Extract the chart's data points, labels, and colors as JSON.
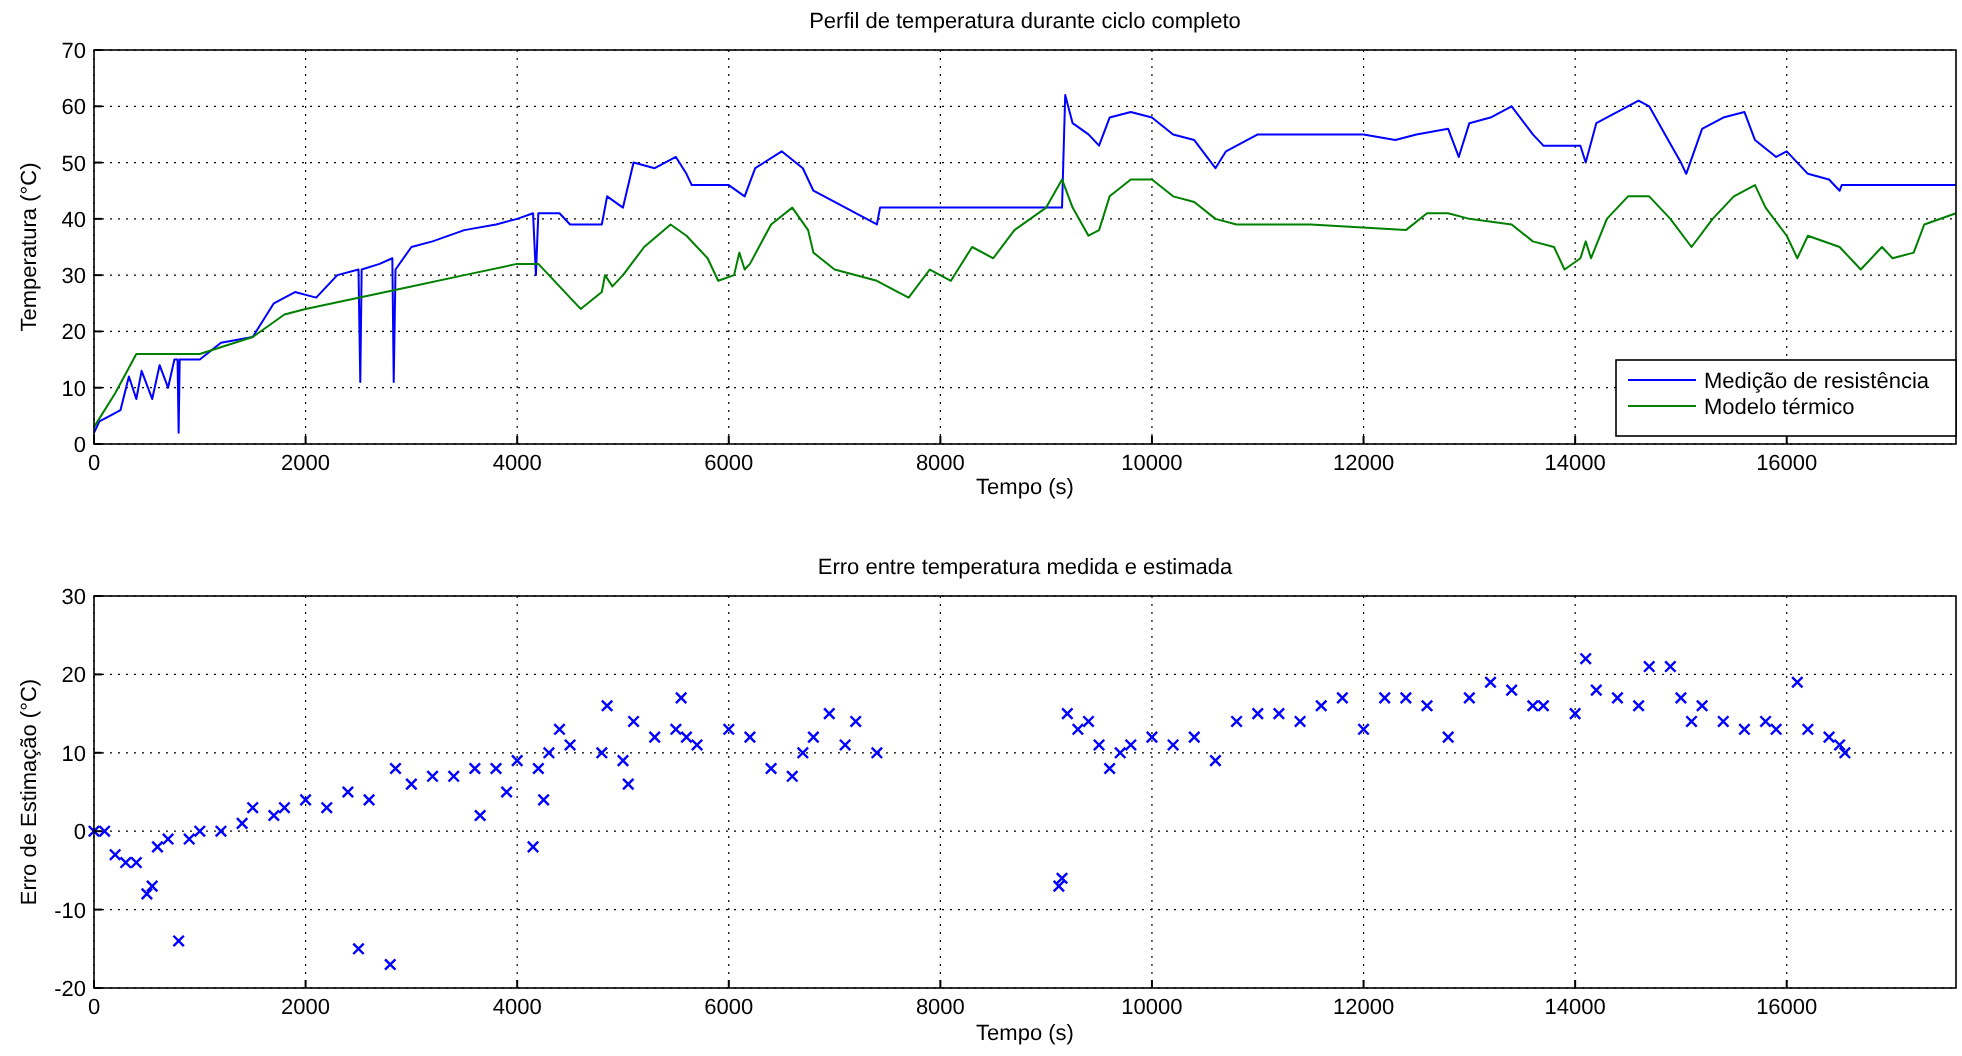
{
  "chart_data": [
    {
      "type": "line",
      "title": "Perfil de temperatura durante ciclo completo",
      "xlabel": "Tempo (s)",
      "ylabel": "Temperatura (°C)",
      "xlim": [
        0,
        17600
      ],
      "xticks": [
        0,
        2000,
        4000,
        6000,
        8000,
        10000,
        12000,
        14000,
        16000
      ],
      "ylim": [
        0,
        70
      ],
      "yticks": [
        0,
        10,
        20,
        30,
        40,
        50,
        60,
        70
      ],
      "grid": true,
      "legend": "bottom right",
      "line_style": "solid",
      "series": [
        {
          "name": "Medição de resistência",
          "color": "#0000ff",
          "x": [
            0,
            50,
            150,
            250,
            330,
            400,
            450,
            550,
            620,
            700,
            760,
            790,
            800,
            810,
            1000,
            1200,
            1500,
            1700,
            1900,
            2100,
            2300,
            2500,
            2517,
            2530,
            2700,
            2820,
            2833,
            2850,
            3000,
            3200,
            3500,
            3800,
            4000,
            4150,
            4177,
            4200,
            4400,
            4500,
            4800,
            4850,
            5000,
            5100,
            5300,
            5500,
            5600,
            5650,
            6000,
            6150,
            6250,
            6500,
            6700,
            6800,
            7000,
            7200,
            7400,
            7430,
            9150,
            9180,
            9250,
            9400,
            9500,
            9600,
            9800,
            10000,
            10200,
            10400,
            10600,
            10700,
            11000,
            11500,
            12000,
            12300,
            12500,
            12800,
            12900,
            13000,
            13200,
            13400,
            13600,
            13700,
            14050,
            14100,
            14200,
            14400,
            14600,
            14700,
            14850,
            15000,
            15050,
            15200,
            15400,
            15600,
            15700,
            15900,
            16000,
            16100,
            16200,
            16400,
            16500,
            16520,
            17600
          ],
          "values": [
            2,
            4,
            5,
            6,
            12,
            8,
            13,
            8,
            14,
            10,
            15,
            15,
            2,
            15,
            15,
            18,
            19,
            25,
            27,
            26,
            30,
            31,
            11,
            31,
            32,
            33,
            11,
            31,
            35,
            36,
            38,
            39,
            40,
            41,
            30,
            41,
            41,
            39,
            39,
            44,
            42,
            50,
            49,
            51,
            48,
            46,
            46,
            44,
            49,
            52,
            49,
            45,
            43,
            41,
            39,
            42,
            42,
            62,
            57,
            55,
            53,
            58,
            59,
            58,
            55,
            54,
            49,
            52,
            55,
            55,
            55,
            54,
            55,
            56,
            51,
            57,
            58,
            60,
            55,
            53,
            53,
            50,
            57,
            59,
            61,
            60,
            55,
            50,
            48,
            56,
            58,
            59,
            54,
            51,
            52,
            50,
            48,
            47,
            45,
            46,
            46
          ]
        },
        {
          "name": "Modelo térmico",
          "color": "#008000",
          "x": [
            0,
            200,
            400,
            600,
            1000,
            1500,
            1800,
            2000,
            2500,
            3000,
            3500,
            4000,
            4200,
            4400,
            4600,
            4800,
            4830,
            4900,
            5000,
            5200,
            5450,
            5600,
            5800,
            5900,
            6050,
            6100,
            6150,
            6200,
            6400,
            6600,
            6750,
            6800,
            7000,
            7400,
            7600,
            7700,
            7900,
            8100,
            8300,
            8500,
            8700,
            9000,
            9150,
            9250,
            9400,
            9500,
            9600,
            9800,
            10000,
            10200,
            10400,
            10600,
            10800,
            11500,
            12400,
            12600,
            12800,
            13000,
            13400,
            13600,
            13800,
            13900,
            14050,
            14100,
            14150,
            14300,
            14500,
            14700,
            14900,
            15100,
            15300,
            15500,
            15700,
            15800,
            16000,
            16100,
            16200,
            16500,
            16700,
            16900,
            17000,
            17200,
            17300,
            17600
          ],
          "values": [
            3,
            9,
            16,
            16,
            16,
            19,
            23,
            24,
            26,
            28,
            30,
            32,
            32,
            28,
            24,
            27,
            30,
            28,
            30,
            35,
            39,
            37,
            33,
            29,
            30,
            34,
            31,
            32,
            39,
            42,
            38,
            34,
            31,
            29,
            27,
            26,
            31,
            29,
            35,
            33,
            38,
            42,
            47,
            42,
            37,
            38,
            44,
            47,
            47,
            44,
            43,
            40,
            39,
            39,
            38,
            41,
            41,
            40,
            39,
            36,
            35,
            31,
            33,
            36,
            33,
            40,
            44,
            44,
            40,
            35,
            40,
            44,
            46,
            42,
            37,
            33,
            37,
            35,
            31,
            35,
            33,
            34,
            39,
            41
          ]
        }
      ]
    },
    {
      "type": "scatter",
      "title": "Erro entre temperatura medida e estimada",
      "xlabel": "Tempo (s)",
      "ylabel": "Erro de Estimação (°C)",
      "xlim": [
        0,
        17600
      ],
      "xticks": [
        0,
        2000,
        4000,
        6000,
        8000,
        10000,
        12000,
        14000,
        16000
      ],
      "ylim": [
        -20,
        30
      ],
      "yticks": [
        -20,
        -10,
        0,
        10,
        20,
        30
      ],
      "grid": true,
      "marker": "cross",
      "series": [
        {
          "color": "#0000ff",
          "x": [
            0,
            100,
            200,
            300,
            400,
            500,
            550,
            600,
            700,
            800,
            900,
            1000,
            1200,
            1400,
            1500,
            1700,
            1800,
            2000,
            2200,
            2400,
            2500,
            2600,
            2800,
            2850,
            3000,
            3200,
            3400,
            3600,
            3650,
            3800,
            3900,
            4000,
            4150,
            4200,
            4250,
            4300,
            4400,
            4500,
            4800,
            4850,
            5000,
            5050,
            5100,
            5300,
            5500,
            5550,
            5600,
            5700,
            6000,
            6200,
            6400,
            6600,
            6700,
            6800,
            6950,
            7100,
            7200,
            7400,
            9120,
            9150,
            9200,
            9300,
            9400,
            9500,
            9600,
            9700,
            9800,
            10000,
            10200,
            10400,
            10600,
            10800,
            11000,
            11200,
            11400,
            11600,
            11800,
            12000,
            12200,
            12400,
            12600,
            12800,
            13000,
            13200,
            13400,
            13600,
            13700,
            14000,
            14100,
            14200,
            14400,
            14600,
            14700,
            14900,
            15000,
            15100,
            15200,
            15400,
            15600,
            15800,
            15900,
            16100,
            16200,
            16400,
            16500,
            16550
          ],
          "values": [
            0,
            0,
            -3,
            -4,
            -4,
            -8,
            -7,
            -2,
            -1,
            -14,
            -1,
            0,
            0,
            1,
            3,
            2,
            3,
            4,
            3,
            5,
            -15,
            4,
            -17,
            8,
            6,
            7,
            7,
            8,
            2,
            8,
            5,
            9,
            -2,
            8,
            4,
            10,
            13,
            11,
            10,
            16,
            9,
            6,
            14,
            12,
            13,
            17,
            12,
            11,
            13,
            12,
            8,
            7,
            10,
            12,
            15,
            11,
            14,
            10,
            -7,
            -6,
            15,
            13,
            14,
            11,
            8,
            10,
            11,
            12,
            11,
            12,
            9,
            14,
            15,
            15,
            14,
            16,
            17,
            13,
            17,
            17,
            16,
            12,
            17,
            19,
            18,
            16,
            16,
            15,
            22,
            18,
            17,
            16,
            21,
            21,
            17,
            14,
            16,
            14,
            13,
            14,
            13,
            19,
            13,
            12,
            11,
            10
          ]
        }
      ]
    }
  ]
}
